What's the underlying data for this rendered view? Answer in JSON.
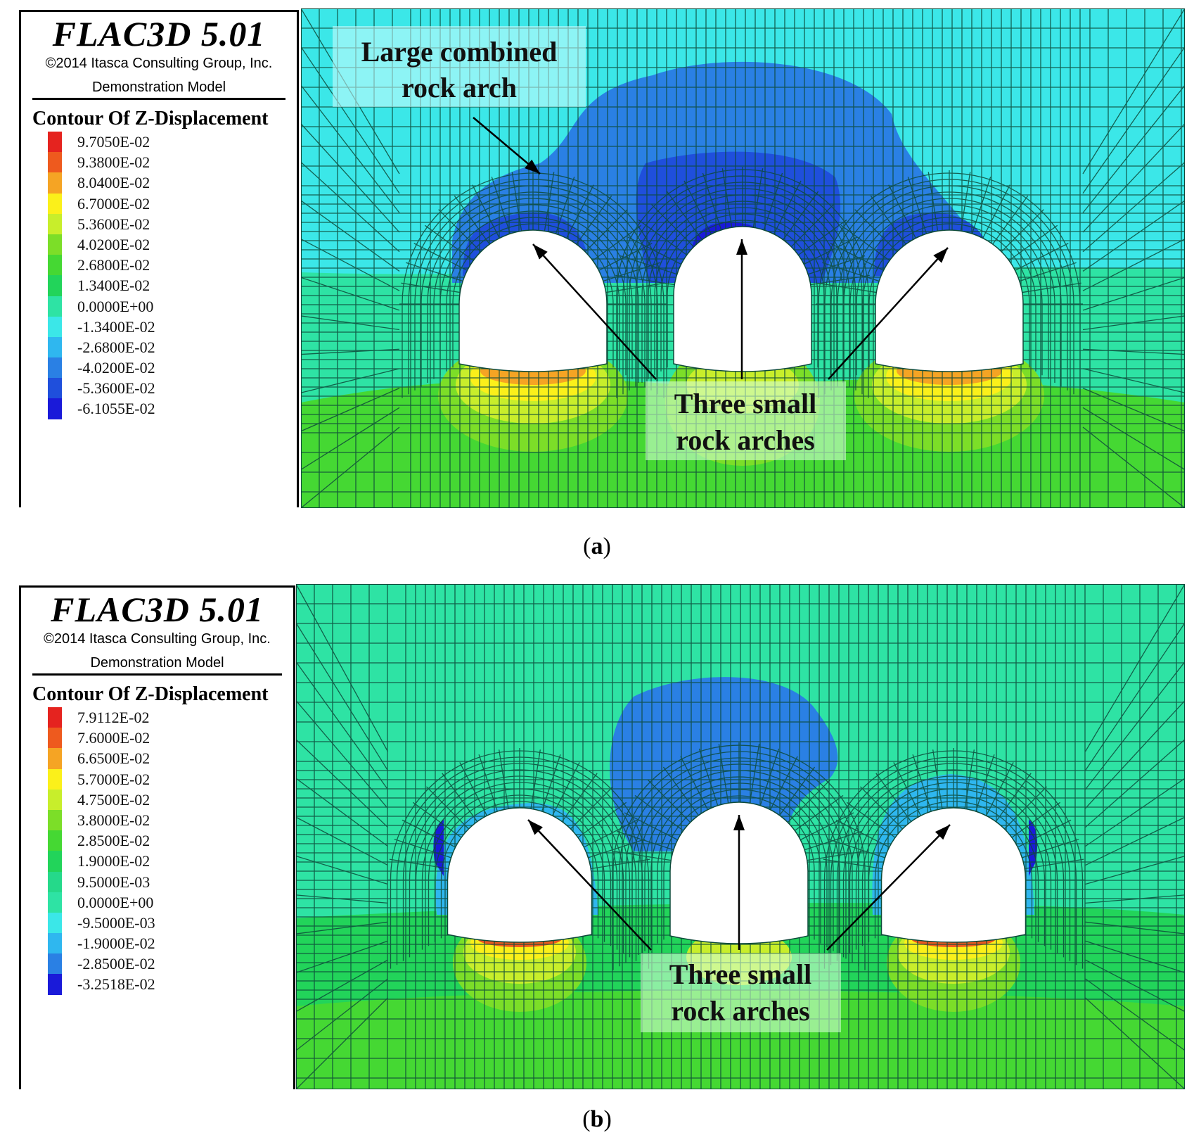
{
  "panels": [
    {
      "id": "a",
      "software_title": "FLAC3D 5.01",
      "copyright": "©2014 Itasca Consulting Group, Inc.",
      "model_label": "Demonstration Model",
      "contour_title": "Contour Of Z-Displacement",
      "legend": [
        {
          "label": "9.7050E-02",
          "color": "#e5231f"
        },
        {
          "label": "9.3800E-02",
          "color": "#ee5a1e"
        },
        {
          "label": "8.0400E-02",
          "color": "#f5a424"
        },
        {
          "label": "6.7000E-02",
          "color": "#fbf01a"
        },
        {
          "label": "5.3600E-02",
          "color": "#c8ee2b"
        },
        {
          "label": "4.0200E-02",
          "color": "#7cde28"
        },
        {
          "label": "2.6800E-02",
          "color": "#45d833"
        },
        {
          "label": "1.3400E-02",
          "color": "#22d45a"
        },
        {
          "label": "0.0000E+00",
          "color": "#2ee3a4"
        },
        {
          "label": "-1.3400E-02",
          "color": "#3be7e8"
        },
        {
          "label": "-2.6800E-02",
          "color": "#2fb7ef"
        },
        {
          "label": "-4.0200E-02",
          "color": "#2a80e4"
        },
        {
          "label": "-5.3600E-02",
          "color": "#1f4fdc"
        },
        {
          "label": "-6.1055E-02",
          "color": "#1a1ad9"
        }
      ],
      "annotations": {
        "top_line1": "Large combined",
        "top_line2": "rock arch",
        "bottom_line1": "Three small",
        "bottom_line2": "rock arches"
      },
      "caption_letter": "a"
    },
    {
      "id": "b",
      "software_title": "FLAC3D 5.01",
      "copyright": "©2014 Itasca Consulting Group, Inc.",
      "model_label": "Demonstration Model",
      "contour_title": "Contour Of Z-Displacement",
      "legend": [
        {
          "label": "7.9112E-02",
          "color": "#e5231f"
        },
        {
          "label": "7.6000E-02",
          "color": "#ee5a1e"
        },
        {
          "label": "6.6500E-02",
          "color": "#f5a424"
        },
        {
          "label": "5.7000E-02",
          "color": "#fbf01a"
        },
        {
          "label": "4.7500E-02",
          "color": "#c8ee2b"
        },
        {
          "label": "3.8000E-02",
          "color": "#7cde28"
        },
        {
          "label": "2.8500E-02",
          "color": "#45d833"
        },
        {
          "label": "1.9000E-02",
          "color": "#22d45a"
        },
        {
          "label": "9.5000E-03",
          "color": "#25d98a"
        },
        {
          "label": "0.0000E+00",
          "color": "#2ee3a4"
        },
        {
          "label": "-9.5000E-03",
          "color": "#3be7e8"
        },
        {
          "label": "-1.9000E-02",
          "color": "#2fb7ef"
        },
        {
          "label": "-2.8500E-02",
          "color": "#2a80e4"
        },
        {
          "label": "-3.2518E-02",
          "color": "#1a1ad9"
        }
      ],
      "annotations": {
        "bottom_line1": "Three small",
        "bottom_line2": "rock arches"
      },
      "caption_letter": "b"
    }
  ]
}
